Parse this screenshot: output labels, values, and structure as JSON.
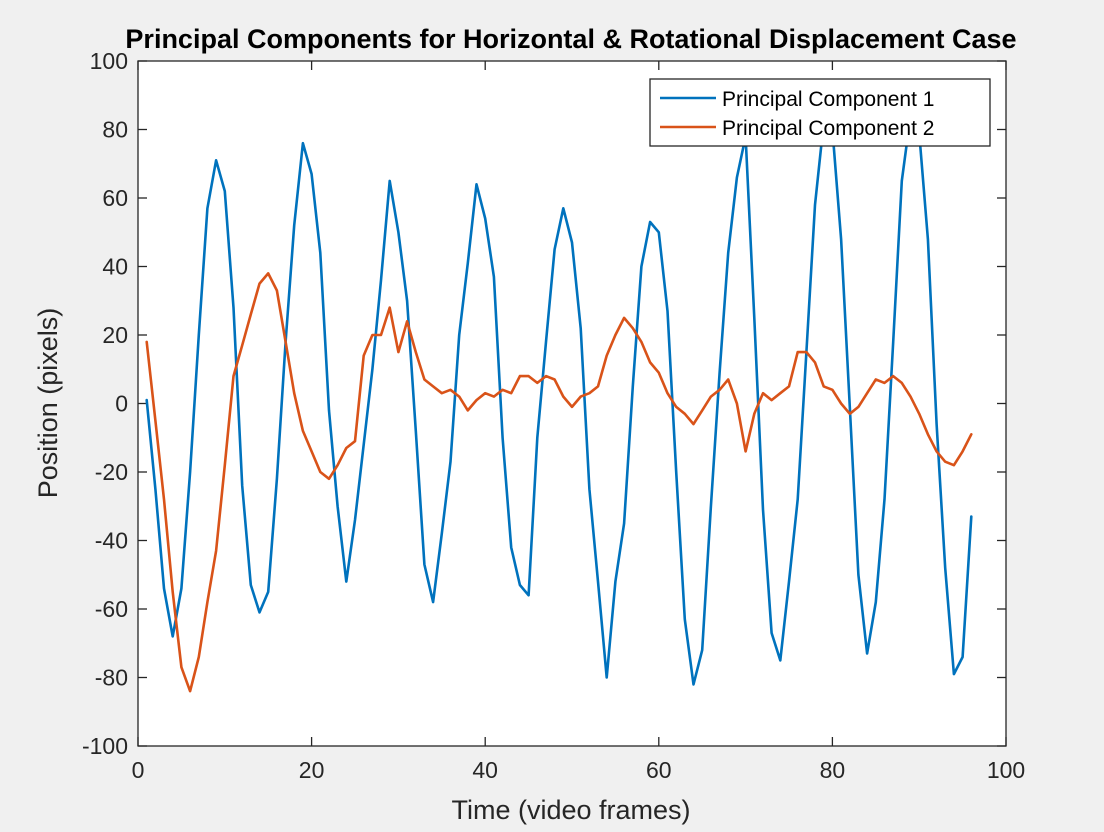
{
  "chart_data": {
    "type": "line",
    "title": "Principal Components for Horizontal & Rotational Displacement Case",
    "xlabel": "Time (video frames)",
    "ylabel": "Position (pixels)",
    "xlim": [
      0,
      100
    ],
    "ylim": [
      -100,
      100
    ],
    "xticks": [
      0,
      20,
      40,
      60,
      80,
      100
    ],
    "yticks": [
      -100,
      -80,
      -60,
      -40,
      -20,
      0,
      20,
      40,
      60,
      80,
      100
    ],
    "grid": false,
    "legend_position": "top-right",
    "series": [
      {
        "name": "Principal Component 1",
        "color": "#0072BD",
        "x": [
          1,
          2,
          3,
          4,
          5,
          6,
          7,
          8,
          9,
          10,
          11,
          12,
          13,
          14,
          15,
          16,
          17,
          18,
          19,
          20,
          21,
          22,
          23,
          24,
          25,
          26,
          27,
          28,
          29,
          30,
          31,
          32,
          33,
          34,
          35,
          36,
          37,
          38,
          39,
          40,
          41,
          42,
          43,
          44,
          45,
          46,
          47,
          48,
          49,
          50,
          51,
          52,
          53,
          54,
          55,
          56,
          57,
          58,
          59,
          60,
          61,
          62,
          63,
          64,
          65,
          66,
          67,
          68,
          69,
          70,
          71,
          72,
          73,
          74,
          75,
          76,
          77,
          78,
          79,
          80,
          81,
          82,
          83,
          84,
          85,
          86,
          87,
          88,
          89,
          90,
          91,
          92,
          93,
          94,
          95,
          96
        ],
        "values": [
          1,
          -25,
          -54,
          -68,
          -54,
          -20,
          20,
          57,
          71,
          62,
          28,
          -24,
          -53,
          -61,
          -55,
          -22,
          18,
          52,
          76,
          67,
          44,
          -2,
          -30,
          -52,
          -34,
          -12,
          10,
          36,
          65,
          50,
          30,
          -8,
          -47,
          -58,
          -38,
          -17,
          20,
          41,
          64,
          54,
          37,
          -10,
          -42,
          -53,
          -56,
          -10,
          18,
          45,
          57,
          47,
          22,
          -25,
          -52,
          -80,
          -52,
          -35,
          5,
          40,
          53,
          50,
          27,
          -20,
          -63,
          -82,
          -72,
          -30,
          9,
          44,
          66,
          78,
          25,
          -31,
          -67,
          -75,
          -52,
          -28,
          15,
          58,
          82,
          80,
          48,
          -1,
          -50,
          -73,
          -58,
          -28,
          18,
          65,
          84,
          79,
          48,
          -6,
          -48,
          -79,
          -74,
          -33
        ]
      },
      {
        "name": "Principal Component 2",
        "color": "#D95319",
        "x": [
          1,
          2,
          3,
          4,
          5,
          6,
          7,
          8,
          9,
          10,
          11,
          12,
          13,
          14,
          15,
          16,
          17,
          18,
          19,
          20,
          21,
          22,
          23,
          24,
          25,
          26,
          27,
          28,
          29,
          30,
          31,
          32,
          33,
          34,
          35,
          36,
          37,
          38,
          39,
          40,
          41,
          42,
          43,
          44,
          45,
          46,
          47,
          48,
          49,
          50,
          51,
          52,
          53,
          54,
          55,
          56,
          57,
          58,
          59,
          60,
          61,
          62,
          63,
          64,
          65,
          66,
          67,
          68,
          69,
          70,
          71,
          72,
          73,
          74,
          75,
          76,
          77,
          78,
          79,
          80,
          81,
          82,
          83,
          84,
          85,
          86,
          87,
          88,
          89,
          90,
          91,
          92,
          93,
          94,
          95,
          96
        ],
        "values": [
          18,
          -5,
          -28,
          -55,
          -77,
          -84,
          -74,
          -58,
          -43,
          -18,
          8,
          17,
          26,
          35,
          38,
          33,
          18,
          3,
          -8,
          -14,
          -20,
          -22,
          -18,
          -13,
          -11,
          14,
          20,
          20,
          28,
          15,
          24,
          15,
          7,
          5,
          3,
          4,
          2,
          -2,
          1,
          3,
          2,
          4,
          3,
          8,
          8,
          6,
          8,
          7,
          2,
          -1,
          2,
          3,
          5,
          14,
          20,
          25,
          22,
          18,
          12,
          9,
          3,
          -1,
          -3,
          -6,
          -2,
          2,
          4,
          7,
          0,
          -14,
          -3,
          3,
          1,
          3,
          5,
          15,
          15,
          12,
          5,
          4,
          0,
          -3,
          -1,
          3,
          7,
          6,
          8,
          6,
          2,
          -3,
          -9,
          -14,
          -17,
          -18,
          -14,
          -9
        ]
      }
    ]
  }
}
